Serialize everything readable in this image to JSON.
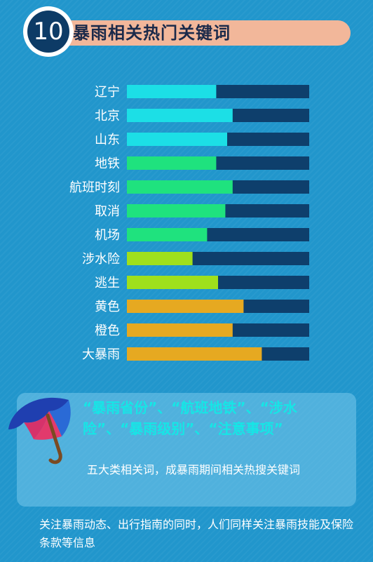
{
  "badge": {
    "number": "10"
  },
  "title": "暴雨相关热门关键词",
  "chart_data": {
    "type": "bar",
    "orientation": "horizontal",
    "categories": [
      "辽宁",
      "北京",
      "山东",
      "地铁",
      "航班时刻",
      "取消",
      "机场",
      "涉水险",
      "逃生",
      "黄色",
      "橙色",
      "大暴雨"
    ],
    "values": [
      49,
      58,
      55,
      49,
      58,
      54,
      44,
      36,
      50,
      64,
      58,
      74
    ],
    "xlim": [
      0,
      100
    ],
    "bar_colors": [
      "#1cdfe6",
      "#1cdfe6",
      "#1cdfe6",
      "#1fe27e",
      "#1fe27e",
      "#1fe27e",
      "#1fe27e",
      "#9fe01c",
      "#9fe01c",
      "#e6a921",
      "#e6a921",
      "#e6a921"
    ],
    "track_color": "#0e3f6c",
    "grid": false
  },
  "info": {
    "headline": "“暴雨省份”、“航班地铁”、“涉水险”、“暴雨级别”、“注意事项”",
    "subtext": "五大类相关词，成暴雨期间相关热搜关键词"
  },
  "footer": "关注暴雨动态、出行指南的同时，人们同样关注暴雨技能及保险条款等信息",
  "icons": {
    "umbrella": "umbrella-icon"
  }
}
